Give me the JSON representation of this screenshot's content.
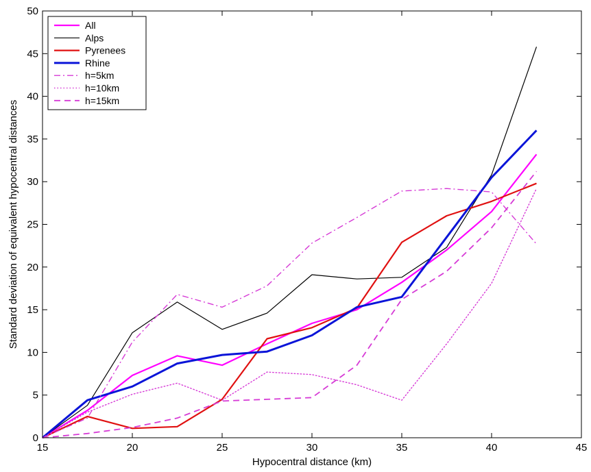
{
  "chart_data": {
    "type": "line",
    "xlabel": "Hypocentral distance (km)",
    "ylabel": "Standard deviation of equivalent hypocentral distances",
    "xlim": [
      15,
      45
    ],
    "ylim": [
      0,
      50
    ],
    "xticks": [
      15,
      20,
      25,
      30,
      35,
      40,
      45
    ],
    "yticks": [
      0,
      5,
      10,
      15,
      20,
      25,
      30,
      35,
      40,
      45,
      50
    ],
    "grid": false,
    "legend_position": "top-left",
    "x": [
      15,
      17.5,
      20,
      22.5,
      25,
      27.5,
      30,
      32.5,
      35,
      37.5,
      40,
      42.5
    ],
    "series": [
      {
        "name": "All",
        "color": "#ff00ff",
        "dash": "solid",
        "width": 2.2,
        "values": [
          0,
          3.2,
          7.3,
          9.6,
          8.5,
          11,
          13.4,
          15,
          18.2,
          22,
          26.5,
          33.2
        ]
      },
      {
        "name": "Alps",
        "color": "#000000",
        "dash": "solid",
        "width": 1.2,
        "values": [
          0,
          3.8,
          12.3,
          15.9,
          12.7,
          14.6,
          19.1,
          18.6,
          18.8,
          22.3,
          30.8,
          45.8
        ]
      },
      {
        "name": "Pyrenees",
        "color": "#e01010",
        "dash": "solid",
        "width": 2.2,
        "values": [
          0,
          2.5,
          1.1,
          1.3,
          4.5,
          11.6,
          12.9,
          15.2,
          22.9,
          26,
          27.7,
          29.8
        ]
      },
      {
        "name": "Rhine",
        "color": "#0a14d8",
        "dash": "solid",
        "width": 3,
        "values": [
          0,
          4.4,
          6,
          8.7,
          9.7,
          10.1,
          12,
          15.3,
          16.5,
          23.5,
          30.5,
          36
        ]
      },
      {
        "name": "h=5km",
        "color": "#d63ad6",
        "dash": "dashdot",
        "width": 1.4,
        "values": [
          0,
          2.3,
          11.2,
          16.8,
          15.3,
          17.8,
          22.8,
          25.8,
          28.9,
          29.2,
          28.8,
          22.7
        ]
      },
      {
        "name": "h=10km",
        "color": "#d63ad6",
        "dash": "dotted",
        "width": 1.4,
        "values": [
          0,
          3,
          5.1,
          6.4,
          4.4,
          7.7,
          7.4,
          6.2,
          4.4,
          11,
          18.1,
          29.2
        ]
      },
      {
        "name": "h=15km",
        "color": "#d63ad6",
        "dash": "dashed",
        "width": 1.8,
        "values": [
          0,
          0.5,
          1.2,
          2.3,
          4.3,
          4.5,
          4.7,
          8.5,
          16.2,
          19.5,
          24.6,
          31.2
        ]
      }
    ]
  }
}
